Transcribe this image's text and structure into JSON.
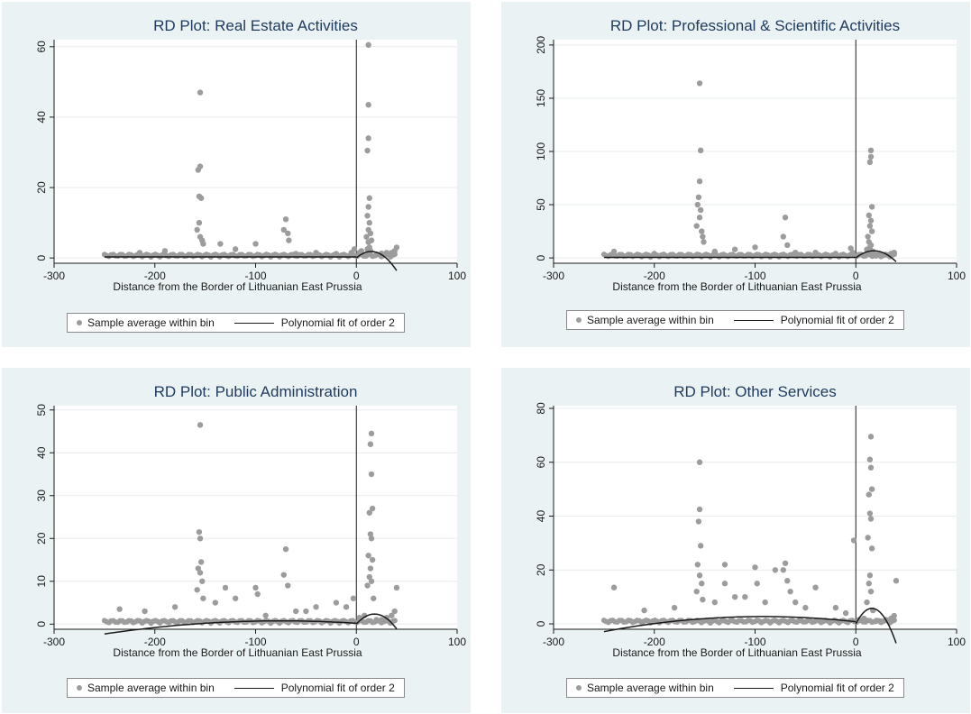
{
  "colors": {
    "panel_bg": "#eaf2f3",
    "plot_bg": "#ffffff",
    "title": "#1e3a5f",
    "points": "#9c9c9c",
    "fit": "#1a1a1a",
    "grid": "#e7ecee",
    "cutoff": "#1a1a1a"
  },
  "chart_data": [
    {
      "type": "scatter",
      "title": "RD Plot: Real Estate Activities",
      "xlabel": "Distance from the Border of Lithuanian East Prussia",
      "ylabel": "",
      "xlim": [
        -300,
        100
      ],
      "ylim": [
        -1.5,
        62
      ],
      "xticks": [
        -300,
        -200,
        -100,
        0,
        100
      ],
      "yticks": [
        0,
        20,
        40,
        60
      ],
      "cutoff": 0,
      "grid": true,
      "legend": {
        "position": "bottom",
        "entries": [
          "Sample average within bin",
          "Polynomial fit of order 2"
        ]
      },
      "series": [
        {
          "name": "Sample average within bin",
          "kind": "points",
          "x": [
            -155,
            -155,
            -157,
            -156,
            -154,
            -156,
            -158,
            -155,
            -153,
            -152,
            -135,
            -70,
            -72,
            -68,
            -67,
            -100,
            -120,
            -190,
            -215,
            -60,
            -40,
            -20,
            -5,
            -2,
            12,
            12,
            12,
            11,
            13,
            12,
            11,
            13,
            12,
            14,
            10,
            15,
            12,
            13,
            11,
            14,
            40,
            38,
            35,
            30,
            25,
            20,
            5,
            3
          ],
          "y": [
            47,
            26,
            25,
            17.5,
            17,
            10,
            8,
            6,
            5,
            4,
            4,
            11,
            8,
            7,
            5,
            4,
            2.5,
            2,
            1.5,
            1.2,
            1.5,
            1.2,
            1.5,
            2.5,
            60.5,
            43.5,
            34,
            30.5,
            17,
            14.5,
            12,
            10,
            8,
            7,
            6,
            5,
            4.5,
            3,
            2.5,
            2,
            3,
            2,
            1.5,
            1.5,
            1.3,
            1,
            2,
            1.5
          ]
        },
        {
          "name": "Polynomial fit of order 2",
          "kind": "fit",
          "left_coef": [
            0.3,
            0.0,
            0.0
          ],
          "right_coef": [
            0.0,
            0.25,
            -0.0085
          ],
          "left_range": [
            -250,
            0
          ],
          "right_range": [
            0,
            40
          ]
        }
      ]
    },
    {
      "type": "scatter",
      "title": "RD Plot: Professional & Scientific Activities",
      "xlabel": "Distance from the Border of Lithuanian East Prussia",
      "ylabel": "",
      "xlim": [
        -300,
        100
      ],
      "ylim": [
        -5,
        205
      ],
      "xticks": [
        -300,
        -200,
        -100,
        0,
        100
      ],
      "yticks": [
        0,
        50,
        100,
        150,
        200
      ],
      "cutoff": 0,
      "grid": true,
      "legend": {
        "position": "bottom",
        "entries": [
          "Sample average within bin",
          "Polynomial fit of order 2"
        ]
      },
      "series": [
        {
          "name": "Sample average within bin",
          "kind": "points",
          "x": [
            -155,
            -154,
            -155,
            -156,
            -157,
            -154,
            -155,
            -158,
            -153,
            -152,
            -151,
            -70,
            -72,
            -68,
            -100,
            -120,
            -140,
            -200,
            -240,
            -60,
            -40,
            -20,
            -5,
            -3,
            15,
            15,
            14,
            16,
            13,
            15,
            14,
            16,
            12,
            13,
            15,
            14,
            11,
            17,
            38,
            35,
            30,
            25,
            20,
            8,
            3
          ],
          "y": [
            164,
            101,
            72,
            57,
            50,
            45,
            38,
            30,
            25,
            20,
            15,
            38,
            20,
            12,
            10,
            8,
            6,
            4,
            6,
            5,
            5,
            4,
            9,
            5,
            101,
            95,
            90,
            48,
            40,
            35,
            30,
            25,
            20,
            15,
            12,
            10,
            8,
            6,
            5,
            4,
            3,
            3,
            2,
            2,
            3
          ]
        },
        {
          "name": "Polynomial fit of order 2",
          "kind": "fit",
          "left_coef": [
            0.5,
            0.0,
            0.0
          ],
          "right_coef": [
            0.0,
            0.75,
            -0.021
          ],
          "left_range": [
            -250,
            0
          ],
          "right_range": [
            0,
            40
          ]
        }
      ]
    },
    {
      "type": "scatter",
      "title": "RD Plot: Public Administration",
      "xlabel": "Distance from the Border of Lithuanian East Prussia",
      "ylabel": "",
      "xlim": [
        -300,
        100
      ],
      "ylim": [
        -1.2,
        51
      ],
      "xticks": [
        -300,
        -200,
        -100,
        0,
        100
      ],
      "yticks": [
        0,
        10,
        20,
        30,
        40,
        50
      ],
      "cutoff": 0,
      "grid": true,
      "legend": {
        "position": "bottom",
        "entries": [
          "Sample average within bin",
          "Polynomial fit of order 2"
        ]
      },
      "series": [
        {
          "name": "Sample average within bin",
          "kind": "points",
          "x": [
            -155,
            -156,
            -155,
            -154,
            -157,
            -155,
            -153,
            -158,
            -152,
            -130,
            -100,
            -98,
            -70,
            -72,
            -68,
            -120,
            -140,
            -180,
            -210,
            -235,
            -60,
            -40,
            -20,
            -10,
            -3,
            15,
            14,
            15,
            16,
            13,
            14,
            15,
            12,
            16,
            14,
            13,
            15,
            11,
            17,
            40,
            38,
            35,
            30,
            25,
            20,
            8,
            3,
            -50,
            -90
          ],
          "y": [
            46.5,
            21.5,
            20,
            14.5,
            13,
            12,
            10,
            8,
            6,
            8.5,
            8.5,
            7,
            17.5,
            11.5,
            9,
            6,
            5,
            4,
            3,
            3.5,
            3,
            4,
            5,
            4,
            6,
            44.5,
            42,
            35,
            27,
            26,
            21,
            20,
            16,
            15,
            13,
            11,
            10,
            9,
            6,
            8.5,
            3,
            2,
            1.5,
            1,
            1,
            2,
            1.5,
            3,
            2
          ]
        },
        {
          "name": "Polynomial fit of order 2",
          "kind": "fit",
          "left_coef": [
            0.2,
            -0.015,
            -0.0001
          ],
          "right_coef": [
            0.0,
            0.26,
            -0.0072
          ],
          "left_range": [
            -250,
            0
          ],
          "right_range": [
            0,
            40
          ]
        }
      ]
    },
    {
      "type": "scatter",
      "title": "RD Plot: Other Services",
      "xlabel": "Distance from the Border of Lithuanian East Prussia",
      "ylabel": "",
      "xlim": [
        -300,
        100
      ],
      "ylim": [
        -2,
        81
      ],
      "xticks": [
        -300,
        -200,
        -100,
        0,
        100
      ],
      "yticks": [
        0,
        20,
        40,
        60,
        80
      ],
      "cutoff": 0,
      "grid": true,
      "legend": {
        "position": "bottom",
        "entries": [
          "Sample average within bin",
          "Polynomial fit of order 2"
        ]
      },
      "series": [
        {
          "name": "Sample average within bin",
          "kind": "points",
          "x": [
            -155,
            -155,
            -156,
            -154,
            -157,
            -155,
            -153,
            -158,
            -152,
            -130,
            -130,
            -100,
            -98,
            -80,
            -70,
            -72,
            -68,
            -65,
            -120,
            -140,
            -180,
            -210,
            -240,
            -60,
            -40,
            -20,
            -10,
            -2,
            15,
            14,
            15,
            16,
            13,
            14,
            15,
            12,
            16,
            14,
            13,
            15,
            11,
            17,
            40,
            38,
            35,
            30,
            25,
            20,
            8,
            3,
            -50,
            -90,
            -110
          ],
          "y": [
            60,
            42.5,
            38,
            29,
            22,
            18,
            15,
            12,
            9,
            22,
            15,
            21,
            15,
            20,
            22.5,
            20,
            16,
            12,
            10,
            8,
            6,
            5,
            13.5,
            8,
            13.5,
            6,
            4,
            31,
            69.5,
            61,
            58,
            50,
            48,
            41,
            39,
            32,
            28,
            18,
            15,
            12,
            8,
            5,
            16,
            3,
            2,
            1.5,
            1,
            1,
            2,
            1.5,
            6,
            8,
            10
          ]
        },
        {
          "name": "Polynomial fit of order 2",
          "kind": "fit",
          "left_coef": [
            0.8,
            -0.0415,
            -0.000225
          ],
          "right_coef": [
            0.0,
            0.72,
            -0.0225
          ],
          "left_range": [
            -250,
            0
          ],
          "right_range": [
            0,
            40
          ]
        }
      ]
    }
  ]
}
